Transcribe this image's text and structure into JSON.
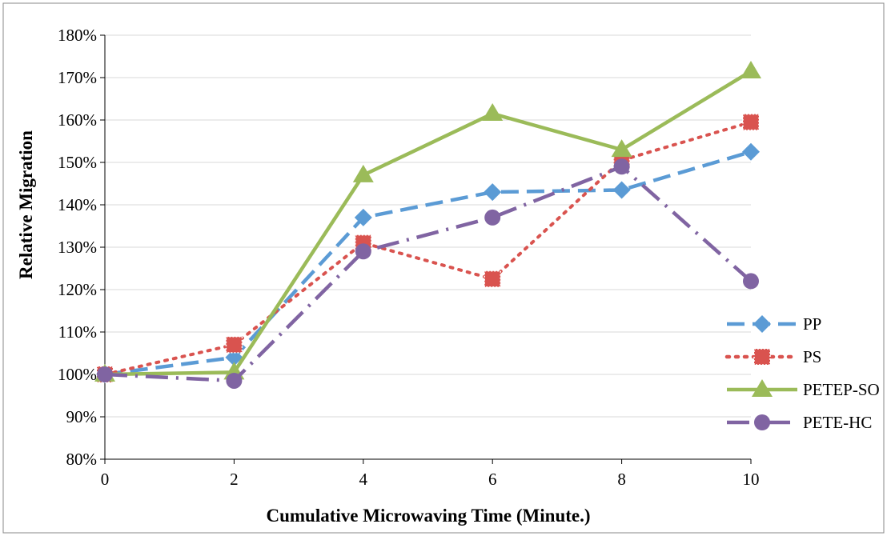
{
  "chart_data": {
    "type": "line",
    "x": [
      0,
      2,
      4,
      6,
      8,
      10
    ],
    "xlabel": "Cumulative Microwaving Time (Minute.)",
    "ylabel": "Relative Migration",
    "xlim": [
      0,
      10
    ],
    "ylim": [
      0.8,
      1.8
    ],
    "x_ticks": [
      "0",
      "2",
      "4",
      "6",
      "8",
      "10"
    ],
    "y_ticks": [
      "80%",
      "90%",
      "100%",
      "110%",
      "120%",
      "130%",
      "140%",
      "150%",
      "160%",
      "170%",
      "180%"
    ],
    "y_format": "percent",
    "grid": true,
    "legend_position": "right",
    "series": [
      {
        "name": "PP",
        "values": [
          1.0,
          1.04,
          1.37,
          1.43,
          1.435,
          1.525
        ],
        "color": "#5b9bd5",
        "line_style": "dashed",
        "marker": "diamond"
      },
      {
        "name": "PS",
        "values": [
          1.0,
          1.07,
          1.31,
          1.225,
          1.505,
          1.595
        ],
        "color": "#d9534f",
        "line_style": "dotted",
        "marker": "square"
      },
      {
        "name": "PETEP-SO",
        "values": [
          1.0,
          1.005,
          1.47,
          1.615,
          1.53,
          1.715
        ],
        "color": "#9bbb59",
        "line_style": "solid",
        "marker": "triangle"
      },
      {
        "name": "PETE-HC",
        "values": [
          1.0,
          0.985,
          1.29,
          1.37,
          1.49,
          1.22
        ],
        "color": "#8064a2",
        "line_style": "dashdot",
        "marker": "circle"
      }
    ]
  }
}
